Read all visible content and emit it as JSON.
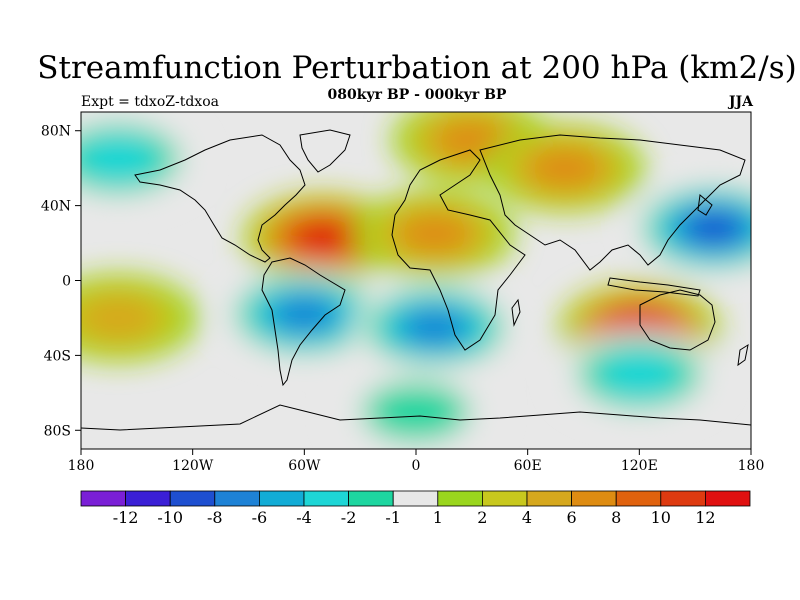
{
  "header": {
    "title": "Streamfunction Perturbation at 200 hPa (km2/s)",
    "subtitle": "080kyr BP - 000kyr BP",
    "experiment": "Expt = tdxoZ-tdxoa",
    "season": "JJA"
  },
  "axes": {
    "y_ticks": [
      {
        "label": "80N",
        "lat": 80
      },
      {
        "label": "40N",
        "lat": 40
      },
      {
        "label": "0",
        "lat": 0
      },
      {
        "label": "40S",
        "lat": -40
      },
      {
        "label": "80S",
        "lat": -80
      }
    ],
    "x_ticks": [
      {
        "label": "180",
        "lon": -180
      },
      {
        "label": "120W",
        "lon": -120
      },
      {
        "label": "60W",
        "lon": -60
      },
      {
        "label": "0",
        "lon": 0
      },
      {
        "label": "60E",
        "lon": 60
      },
      {
        "label": "120E",
        "lon": 120
      },
      {
        "label": "180",
        "lon": 180
      }
    ]
  },
  "colorbar": {
    "colors": [
      "#7a1fd6",
      "#3b1fd6",
      "#1e4fd0",
      "#1e82d6",
      "#12acd6",
      "#1ed6d6",
      "#1ed6a0",
      "#e8e8e8",
      "#9ad61e",
      "#c8c81e",
      "#d6a81e",
      "#de8c12",
      "#e0620e",
      "#de3a10",
      "#e01010"
    ],
    "labels": [
      "-12",
      "-10",
      "-8",
      "-6",
      "-4",
      "-2",
      "-1",
      "1",
      "2",
      "4",
      "6",
      "8",
      "10",
      "12"
    ]
  },
  "map": {
    "background_color": "#e8e8e8",
    "fields": [
      {
        "name": "north-atlantic-high",
        "lon": -50,
        "lat": 23,
        "value": 12
      },
      {
        "name": "north-africa-high",
        "lon": 10,
        "lat": 25,
        "value": 6
      },
      {
        "name": "arctic-high",
        "lon": 30,
        "lat": 75,
        "value": 6
      },
      {
        "name": "asia-high",
        "lon": 80,
        "lat": 60,
        "value": 6
      },
      {
        "name": "north-pacific-low",
        "lon": -160,
        "lat": 65,
        "value": -4
      },
      {
        "name": "west-pacific-low",
        "lon": 160,
        "lat": 28,
        "value": -10
      },
      {
        "name": "south-america-low",
        "lon": -60,
        "lat": -18,
        "value": -8
      },
      {
        "name": "south-atlantic-low",
        "lon": 10,
        "lat": -25,
        "value": -8
      },
      {
        "name": "australia-high",
        "lon": 120,
        "lat": -25,
        "value": 12
      },
      {
        "name": "south-pacific-high",
        "lon": -160,
        "lat": -20,
        "value": 4
      },
      {
        "name": "southern-ocean-low",
        "lon": 120,
        "lat": -50,
        "value": -4
      },
      {
        "name": "antarctic-low",
        "lon": 0,
        "lat": -70,
        "value": -2
      }
    ]
  }
}
